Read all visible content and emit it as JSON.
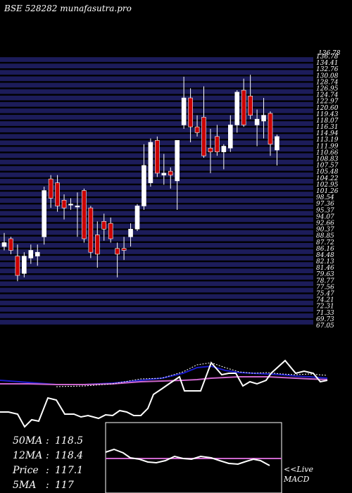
{
  "header": {
    "title": "BSE 528282 munafasutra.pro"
  },
  "chart_data": {
    "type": "candlestick",
    "price_axis": {
      "labels": [
        "136.78",
        "134.41",
        "132.76",
        "130.08",
        "128.74",
        "126.95",
        "124.74",
        "122.97",
        "120.60",
        "119.43",
        "118.07",
        "116.31",
        "114.94",
        "113.19",
        "111.99",
        "110.66",
        "108.83",
        "107.57",
        "105.48",
        "104.22",
        "102.95",
        "101.26",
        "98.54",
        "97.36",
        "95.37",
        "94.07",
        "92.66",
        "90.37",
        "88.85",
        "87.72",
        "86.16",
        "84.48",
        "82.13",
        "81.46",
        "79.63",
        "78.77",
        "77.56",
        "75.47",
        "74.21",
        "72.31",
        "71.33",
        "69.73",
        "67.05"
      ]
    },
    "candles": [
      {
        "o": 87.5,
        "h": 91.0,
        "l": 86.5,
        "c": 88.5
      },
      {
        "o": 89.5,
        "h": 90.0,
        "l": 85.5,
        "c": 86.5
      },
      {
        "o": 85.0,
        "h": 88.0,
        "l": 78.5,
        "c": 80.0
      },
      {
        "o": 80.5,
        "h": 86.0,
        "l": 79.5,
        "c": 85.0
      },
      {
        "o": 84.5,
        "h": 88.0,
        "l": 83.0,
        "c": 86.5
      },
      {
        "o": 85.0,
        "h": 88.0,
        "l": 82.5,
        "c": 86.0
      },
      {
        "o": 90.0,
        "h": 103.0,
        "l": 88.0,
        "c": 102.0
      },
      {
        "o": 105.0,
        "h": 106.0,
        "l": 97.5,
        "c": 100.0
      },
      {
        "o": 104.0,
        "h": 106.0,
        "l": 96.5,
        "c": 98.0
      },
      {
        "o": 99.5,
        "h": 101.0,
        "l": 94.5,
        "c": 97.5
      },
      {
        "o": 98.5,
        "h": 100.0,
        "l": 97.0,
        "c": 98.5
      },
      {
        "o": 98.0,
        "h": 101.5,
        "l": 90.0,
        "c": 98.0
      },
      {
        "o": 102.0,
        "h": 102.5,
        "l": 88.5,
        "c": 89.5
      },
      {
        "o": 97.5,
        "h": 98.0,
        "l": 84.5,
        "c": 86.0
      },
      {
        "o": 90.5,
        "h": 94.0,
        "l": 82.0,
        "c": 85.5
      },
      {
        "o": 94.0,
        "h": 96.0,
        "l": 89.0,
        "c": 92.0
      },
      {
        "o": 93.5,
        "h": 95.0,
        "l": 88.5,
        "c": 89.5
      },
      {
        "o": 87.0,
        "h": 88.5,
        "l": 79.5,
        "c": 85.5
      },
      {
        "o": 87.0,
        "h": 90.0,
        "l": 84.0,
        "c": 86.5
      },
      {
        "o": 90.0,
        "h": 93.5,
        "l": 87.5,
        "c": 92.0
      },
      {
        "o": 92.0,
        "h": 98.5,
        "l": 91.5,
        "c": 98.0
      },
      {
        "o": 98.0,
        "h": 114.0,
        "l": 97.0,
        "c": 108.5
      },
      {
        "o": 104.0,
        "h": 115.5,
        "l": 103.0,
        "c": 114.5
      },
      {
        "o": 115.0,
        "h": 116.0,
        "l": 105.5,
        "c": 106.5
      },
      {
        "o": 106.0,
        "h": 111.5,
        "l": 103.5,
        "c": 106.5
      },
      {
        "o": 107.0,
        "h": 108.0,
        "l": 102.5,
        "c": 106.0
      },
      {
        "o": 104.5,
        "h": 115.0,
        "l": 97.0,
        "c": 115.0
      },
      {
        "o": 119.0,
        "h": 131.5,
        "l": 118.0,
        "c": 126.0
      },
      {
        "o": 126.0,
        "h": 128.5,
        "l": 114.5,
        "c": 118.5
      },
      {
        "o": 118.5,
        "h": 121.5,
        "l": 116.0,
        "c": 117.0
      },
      {
        "o": 121.0,
        "h": 129.0,
        "l": 110.5,
        "c": 111.0
      },
      {
        "o": 113.0,
        "h": 118.0,
        "l": 106.5,
        "c": 112.0
      },
      {
        "o": 116.0,
        "h": 119.0,
        "l": 111.0,
        "c": 112.0
      },
      {
        "o": 112.0,
        "h": 114.0,
        "l": 107.5,
        "c": 113.5
      },
      {
        "o": 113.0,
        "h": 121.5,
        "l": 112.0,
        "c": 119.0
      },
      {
        "o": 119.0,
        "h": 128.0,
        "l": 117.0,
        "c": 127.5
      },
      {
        "o": 128.0,
        "h": 131.0,
        "l": 118.5,
        "c": 119.0
      },
      {
        "o": 126.5,
        "h": 132.0,
        "l": 120.5,
        "c": 121.5
      },
      {
        "o": 119.0,
        "h": 123.0,
        "l": 113.5,
        "c": 120.5
      },
      {
        "o": 120.0,
        "h": 126.0,
        "l": 115.5,
        "c": 121.5
      },
      {
        "o": 122.0,
        "h": 122.5,
        "l": 111.0,
        "c": 114.0
      },
      {
        "o": 112.5,
        "h": 116.5,
        "l": 108.5,
        "c": 116.0
      }
    ],
    "stats": [
      {
        "label": "50MA",
        "value": "118.5"
      },
      {
        "label": "12MA",
        "value": "118.4"
      },
      {
        "label": "Price",
        "value": "117.1"
      },
      {
        "label": "5MA",
        "value": "117"
      }
    ],
    "macd_label": "<<Live MACD",
    "colors": {
      "up": "#ffffff",
      "down": "#cc0000",
      "band": "#1c1c5a",
      "line": "#ffffff",
      "ma_blue": "#1b1bcc",
      "ma_pink": "#cc66cc",
      "panel": "#000000"
    }
  }
}
